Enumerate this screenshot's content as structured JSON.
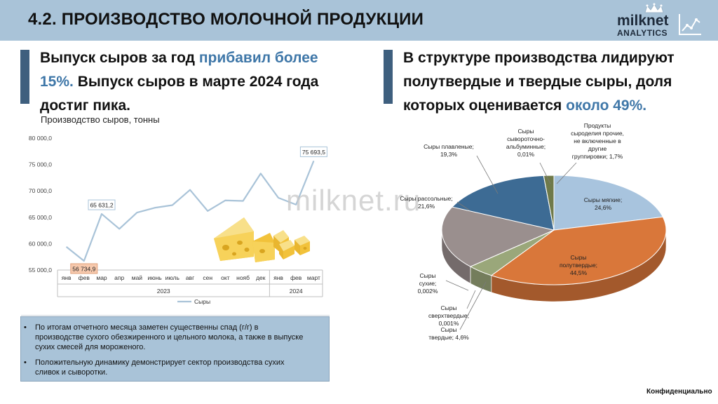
{
  "header": {
    "title": "4.2. ПРОИЗВОДСТВО МОЛОЧНОЙ ПРОДУКЦИИ"
  },
  "logo": {
    "word": "milknet",
    "sub": "ANALYTICS"
  },
  "left": {
    "headline_part1": "Выпуск сыров за год ",
    "headline_hl": "прибавил более 15%.",
    "headline_part2": " Выпуск сыров в марте 2024 года достиг пика.",
    "chart_caption": "Производство сыров, тонны"
  },
  "right": {
    "headline_part1": "В структуре производства лидируют полутвердые и твердые сыры, доля которых оценивается ",
    "headline_hl": "около 49%."
  },
  "watermark": "milknet.ru",
  "notes": [
    "По итогам отчетного месяца заметен существенны спад (г/г) в производстве сухого обезжиренного и цельного молока, а также в выпуске сухих смесей для мороженого.",
    "Положительную динамику демонстрирует сектор производства сухих сливок и сыворотки."
  ],
  "footer": {
    "confidential": "Конфиденциально"
  },
  "chart_data": [
    {
      "type": "line",
      "categories": [
        "янв",
        "фев",
        "мар",
        "апр",
        "май",
        "июнь",
        "июль",
        "авг",
        "сен",
        "окт",
        "нояб",
        "дек",
        "янв",
        "фев",
        "март"
      ],
      "years": [
        {
          "label": "2023",
          "span": 12
        },
        {
          "label": "2024",
          "span": 3
        }
      ],
      "series": [
        {
          "name": "Сыры",
          "color": "#a9c3d8",
          "values": [
            59400,
            56734.9,
            65631.2,
            62800,
            65900,
            66800,
            67300,
            70200,
            66200,
            68200,
            68100,
            73300,
            68700,
            67400,
            75693.5
          ]
        }
      ],
      "data_labels": [
        {
          "index": 1,
          "text": "56 734,9",
          "style": "low"
        },
        {
          "index": 2,
          "text": "65 631,2",
          "style": "high"
        },
        {
          "index": 14,
          "text": "75 693,5",
          "style": "high"
        }
      ],
      "yticks": [
        "55 000,0",
        "60 000,0",
        "65 000,0",
        "70 000,0",
        "75 000,0",
        "80 000,0"
      ],
      "ylim": [
        55000,
        80000
      ],
      "legend": "bottom",
      "grid": false
    },
    {
      "type": "pie",
      "slices": [
        {
          "label": "Сыры мягкие;",
          "pct_text": "24,6%",
          "value": 24.6,
          "color": "#a8c4de"
        },
        {
          "label": "Сыры полутвердые;",
          "pct_text": "44,5%",
          "value": 44.5,
          "color": "#d9773a"
        },
        {
          "label": "Сыры твердые;",
          "pct_text": "4,6%",
          "value": 4.6,
          "color": "#9aa77a"
        },
        {
          "label": "Сыры сверхтвердые;",
          "pct_text": "0,001%",
          "value": 0.001,
          "color": "#8a8f6a"
        },
        {
          "label": "Сыры сухие;",
          "pct_text": "0,002%",
          "value": 0.002,
          "color": "#6b6f55"
        },
        {
          "label": "Сыры рассольные;",
          "pct_text": "21,6%",
          "value": 21.6,
          "color": "#9a8f8e"
        },
        {
          "label": "Сыры плавленые;",
          "pct_text": "19,3%",
          "value": 19.3,
          "color": "#3d6b94"
        },
        {
          "label": "Сыры сывороточно-альбуминные;",
          "pct_text": "0,01%",
          "value": 0.01,
          "color": "#2f5a7e"
        },
        {
          "label": "Продукты сыроделия прочие, не включенные в другие группировки;",
          "pct_text": "1,7%",
          "value": 1.7,
          "color": "#6f7a4a"
        }
      ]
    }
  ]
}
